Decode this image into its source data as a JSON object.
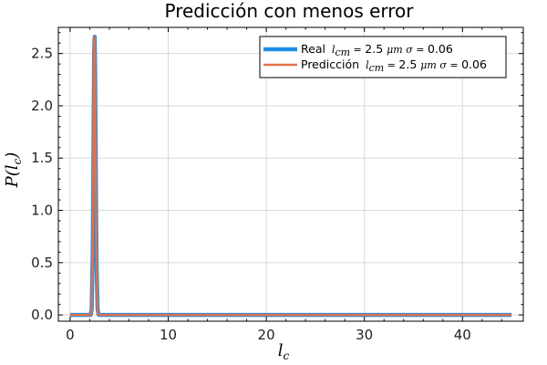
{
  "colors": {
    "real": "#1f8fe6",
    "prediccion": "#e0714a",
    "grid": "#d9d9d9",
    "frame": "#000000"
  },
  "chart_data": {
    "type": "line",
    "title": "Predicción con menos error",
    "xlabel": "l_c",
    "ylabel": "P(l_c)",
    "xlim": [
      -1.2,
      46.2
    ],
    "ylim": [
      -0.06,
      2.75
    ],
    "xticks": [
      0,
      10,
      20,
      30,
      40
    ],
    "xtick_labels": [
      "0",
      "10",
      "20",
      "30",
      "40"
    ],
    "yticks": [
      0.0,
      0.5,
      1.0,
      1.5,
      2.0,
      2.5
    ],
    "ytick_labels": [
      "0.0",
      "0.5",
      "1.0",
      "1.5",
      "2.0",
      "2.5"
    ],
    "grid": true,
    "legend_position": "top-right",
    "series": [
      {
        "name": "Real l_cm = 2.5 μm σ = 0.06",
        "legend_prefix": "Real",
        "legend_lcm": "2.5",
        "legend_sigma": "0.06",
        "x": [
          0,
          2.0,
          2.1,
          2.2,
          2.3,
          2.35,
          2.4,
          2.45,
          2.5,
          2.55,
          2.6,
          2.65,
          2.7,
          2.8,
          2.9,
          3.0,
          45
        ],
        "y": [
          0,
          0.0,
          0.001,
          0.05,
          0.58,
          1.12,
          1.85,
          2.51,
          2.66,
          2.34,
          1.69,
          0.97,
          0.47,
          0.06,
          0.003,
          0.0,
          0
        ]
      },
      {
        "name": "Predicción l_cm = 2.5 μm σ = 0.06",
        "legend_prefix": "Predicción",
        "legend_lcm": "2.5",
        "legend_sigma": "0.06",
        "x": [
          0,
          2.0,
          2.1,
          2.2,
          2.3,
          2.35,
          2.4,
          2.45,
          2.5,
          2.55,
          2.6,
          2.65,
          2.7,
          2.8,
          2.9,
          3.0,
          45
        ],
        "y": [
          0,
          0.0,
          0.001,
          0.05,
          0.58,
          1.12,
          1.85,
          2.51,
          2.66,
          2.34,
          1.69,
          0.97,
          0.47,
          0.06,
          0.003,
          0.0,
          0
        ]
      }
    ]
  }
}
